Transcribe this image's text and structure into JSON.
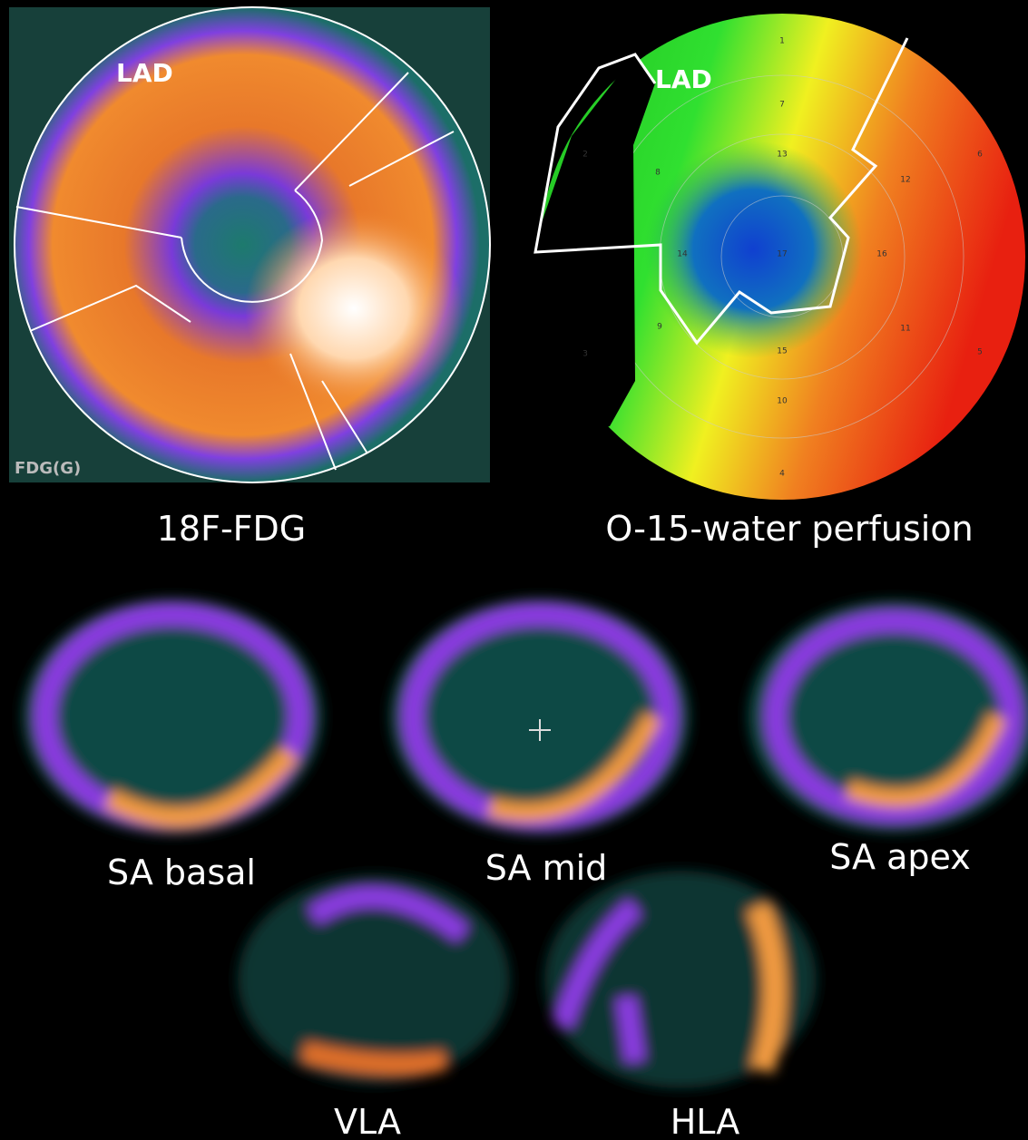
{
  "panels": {
    "fdg_polar_map": {
      "region_label": "LAD",
      "tracer_label": "FDG(G)",
      "caption": "18F-FDG"
    },
    "perfusion_polar_map": {
      "region_label": "LAD",
      "caption": "O-15-water perfusion",
      "segment_labels": [
        "1",
        "2",
        "3",
        "4",
        "5",
        "6",
        "7",
        "8",
        "9",
        "10",
        "11",
        "12",
        "13",
        "14",
        "15",
        "16",
        "17"
      ]
    },
    "slices": [
      "SA basal",
      "SA mid",
      "SA apex",
      "VLA",
      "HLA"
    ]
  }
}
